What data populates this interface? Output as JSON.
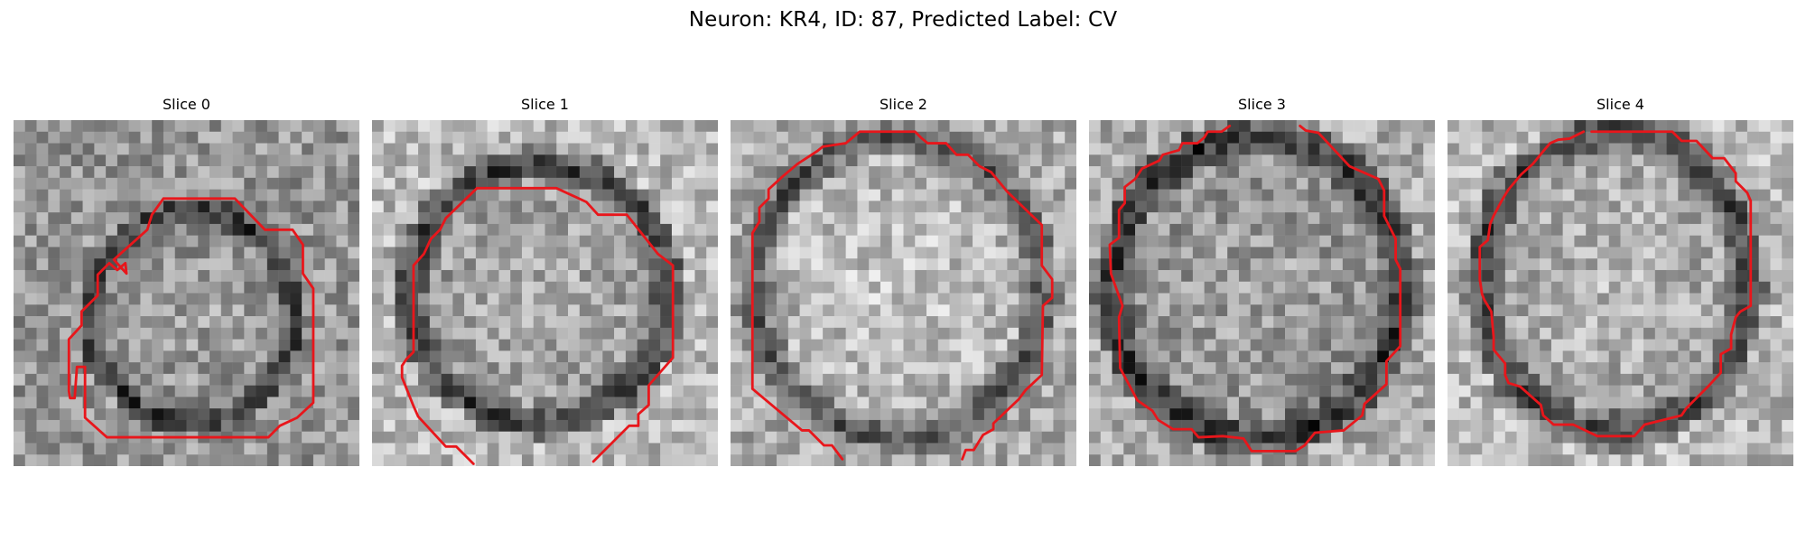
{
  "figure": {
    "title": "Neuron: KR4, ID: 87, Predicted Label: CV"
  },
  "contour_color": "#e8161b",
  "panels": [
    {
      "title": "Slice 0",
      "image": "grayscale micrograph patch with red contour around a ring-shaped neuron (contour open at lower left)"
    },
    {
      "title": "Slice 1",
      "image": "grayscale micrograph patch with red contour around a ring-shaped neuron (contour open at bottom)"
    },
    {
      "title": "Slice 2",
      "image": "grayscale micrograph patch with red contour around a round neuron (contour open at bottom)"
    },
    {
      "title": "Slice 3",
      "image": "grayscale micrograph patch with red contour around a round neuron (contour open at top)"
    },
    {
      "title": "Slice 4",
      "image": "grayscale micrograph patch with closed red contour around an oval neuron"
    }
  ]
}
